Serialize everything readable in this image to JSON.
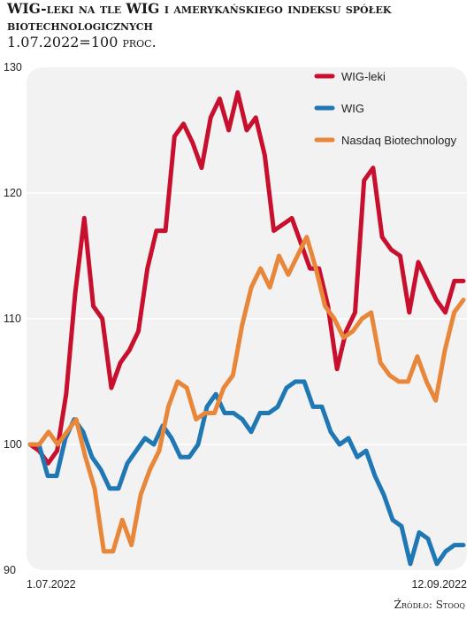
{
  "title": "WIG-leki na tle WIG i amerykańskiego indeksu spółek biotechnologicznych",
  "subtitle": "1.07.2022=100",
  "subtitle_unit": "proc.",
  "source": "Źródło: Stooq",
  "colors": {
    "wig_leki": "#c8102e",
    "wig": "#1f77b4",
    "nasdaq": "#e8863a",
    "panel": "#f2f2f2",
    "grid": "#ffffff"
  },
  "chart_data": {
    "type": "line",
    "x_start_label": "1.07.2022",
    "x_end_label": "12.09.2022",
    "yticks": [
      90,
      100,
      110,
      120,
      130
    ],
    "ylim": [
      90,
      130
    ],
    "legend_position": "top-right",
    "grid": true,
    "series": [
      {
        "name": "WIG-leki",
        "color": "#c8102e",
        "values": [
          100,
          99.5,
          98.5,
          99.5,
          104,
          112,
          118,
          111,
          110,
          104.5,
          106.5,
          107.5,
          109,
          114,
          117,
          117,
          124.5,
          125.5,
          124,
          122,
          126,
          127.5,
          125,
          128,
          125,
          126,
          123,
          117,
          117.5,
          118,
          116,
          114,
          114,
          111,
          106,
          109,
          110.5,
          121,
          122,
          116.5,
          115.5,
          115,
          110.5,
          114.5,
          113,
          111.5,
          110.5,
          113,
          113
        ]
      },
      {
        "name": "WIG",
        "color": "#1f77b4",
        "values": [
          100,
          100,
          97.5,
          97.5,
          100.5,
          102,
          101,
          99,
          98,
          96.5,
          96.5,
          98.5,
          99.5,
          100.5,
          100,
          101.5,
          100.5,
          99,
          99,
          100,
          103,
          104,
          102.5,
          102.5,
          102,
          101,
          102.5,
          102.5,
          103,
          104.5,
          105,
          105,
          103,
          103,
          101,
          100,
          100.5,
          99,
          99.5,
          97.5,
          96,
          94,
          93.5,
          90.5,
          93,
          92.5,
          90.5,
          91.5,
          92,
          92
        ]
      },
      {
        "name": "Nasdaq Biotechnology",
        "color": "#e8863a",
        "values": [
          100,
          100,
          101,
          100,
          101,
          102,
          99,
          96.5,
          91.5,
          91.5,
          94,
          92,
          96,
          98,
          99.5,
          103,
          105,
          104.5,
          102,
          102.5,
          102.5,
          104.5,
          105.5,
          109.5,
          112.5,
          114,
          112.5,
          115,
          113.5,
          115,
          116.5,
          114,
          111,
          110,
          108.5,
          109,
          110,
          110.5,
          106.5,
          105.5,
          105,
          105,
          107,
          105,
          103.5,
          107.5,
          110.5,
          111.5
        ]
      }
    ]
  }
}
